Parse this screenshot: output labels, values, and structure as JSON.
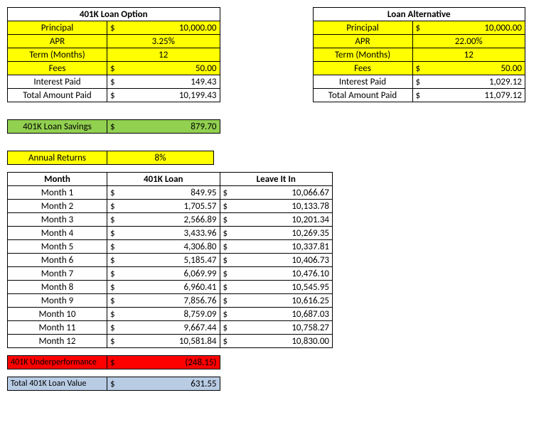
{
  "loan401k": {
    "title": "401K Loan Option",
    "rows": [
      {
        "label": "Principal",
        "sym": "$",
        "val": "10,000.00",
        "yellow": true,
        "center": false
      },
      {
        "label": "APR",
        "sym": "",
        "val": "3.25%",
        "yellow": true,
        "center": true
      },
      {
        "label": "Term (Months)",
        "sym": "",
        "val": "12",
        "yellow": true,
        "center": true
      },
      {
        "label": "Fees",
        "sym": "$",
        "val": "50.00",
        "yellow": true,
        "center": false
      },
      {
        "label": "Interest Paid",
        "sym": "$",
        "val": "149.43",
        "yellow": false,
        "center": false
      },
      {
        "label": "Total Amount Paid",
        "sym": "$",
        "val": "10,199.43",
        "yellow": false,
        "center": false
      }
    ]
  },
  "loanAlt": {
    "title": "Loan Alternative",
    "rows": [
      {
        "label": "Principal",
        "sym": "$",
        "val": "10,000.00",
        "yellow": true,
        "center": false
      },
      {
        "label": "APR",
        "sym": "",
        "val": "22.00%",
        "yellow": true,
        "center": true
      },
      {
        "label": "Term (Months)",
        "sym": "",
        "val": "12",
        "yellow": true,
        "center": true
      },
      {
        "label": "Fees",
        "sym": "$",
        "val": "50.00",
        "yellow": true,
        "center": false
      },
      {
        "label": "Interest Paid",
        "sym": "$",
        "val": "1,029.12",
        "yellow": false,
        "center": false
      },
      {
        "label": "Total Amount Paid",
        "sym": "$",
        "val": "11,079.12",
        "yellow": false,
        "center": false
      }
    ]
  },
  "savings": {
    "label": "401K Loan Savings",
    "sym": "$",
    "val": "879.70"
  },
  "returns": {
    "label": "Annual Returns",
    "val": "8%"
  },
  "monthly": {
    "headers": [
      "Month",
      "401K Loan",
      "Leave It In"
    ],
    "rows": [
      {
        "m": "Month 1",
        "a": "849.95",
        "b": "10,066.67"
      },
      {
        "m": "Month 2",
        "a": "1,705.57",
        "b": "10,133.78"
      },
      {
        "m": "Month 3",
        "a": "2,566.89",
        "b": "10,201.34"
      },
      {
        "m": "Month 4",
        "a": "3,433.96",
        "b": "10,269.35"
      },
      {
        "m": "Month 5",
        "a": "4,306.80",
        "b": "10,337.81"
      },
      {
        "m": "Month 6",
        "a": "5,185.47",
        "b": "10,406.73"
      },
      {
        "m": "Month 7",
        "a": "6,069.99",
        "b": "10,476.10"
      },
      {
        "m": "Month 8",
        "a": "6,960.41",
        "b": "10,545.95"
      },
      {
        "m": "Month 9",
        "a": "7,856.76",
        "b": "10,616.25"
      },
      {
        "m": "Month 10",
        "a": "8,759.09",
        "b": "10,687.03"
      },
      {
        "m": "Month 11",
        "a": "9,667.44",
        "b": "10,758.27"
      },
      {
        "m": "Month 12",
        "a": "10,581.84",
        "b": "10,830.00"
      }
    ]
  },
  "underperf": {
    "label": "401K Underperformance",
    "sym": "$",
    "val": "(248.15)"
  },
  "totalValue": {
    "label": "Total 401K Loan Value",
    "sym": "$",
    "val": "631.55"
  }
}
